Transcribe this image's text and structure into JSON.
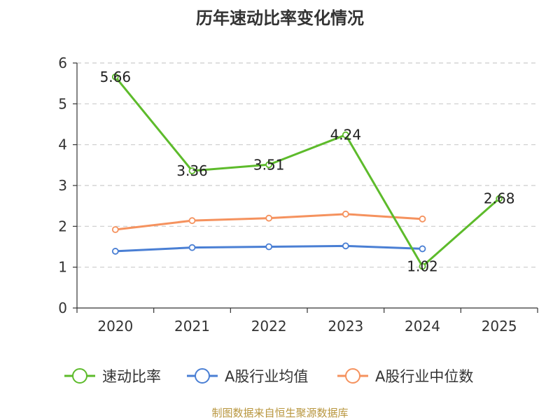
{
  "chart_data": {
    "type": "line",
    "title": "历年速动比率变化情况",
    "categories": [
      "2020",
      "2021",
      "2022",
      "2023",
      "2024",
      "2025"
    ],
    "ylim": [
      0,
      6
    ],
    "yticks": [
      "0",
      "1",
      "2",
      "3",
      "4",
      "5",
      "6"
    ],
    "grid": "horizontal dashed",
    "legend_position": "bottom",
    "series": [
      {
        "name": "速动比率",
        "color": "#5dbb2b",
        "values": [
          5.66,
          3.36,
          3.51,
          4.24,
          1.02,
          2.68
        ],
        "labels": [
          "5.66",
          "3.36",
          "3.51",
          "4.24",
          "1.02",
          "2.68"
        ]
      },
      {
        "name": "A股行业均值",
        "color": "#4a7fd4",
        "values": [
          1.39,
          1.48,
          1.5,
          1.52,
          1.45,
          null
        ]
      },
      {
        "name": "A股行业中位数",
        "color": "#f5925e",
        "values": [
          1.92,
          2.14,
          2.2,
          2.3,
          2.18,
          null
        ]
      }
    ],
    "source": "制图数据来自恒生聚源数据库"
  }
}
